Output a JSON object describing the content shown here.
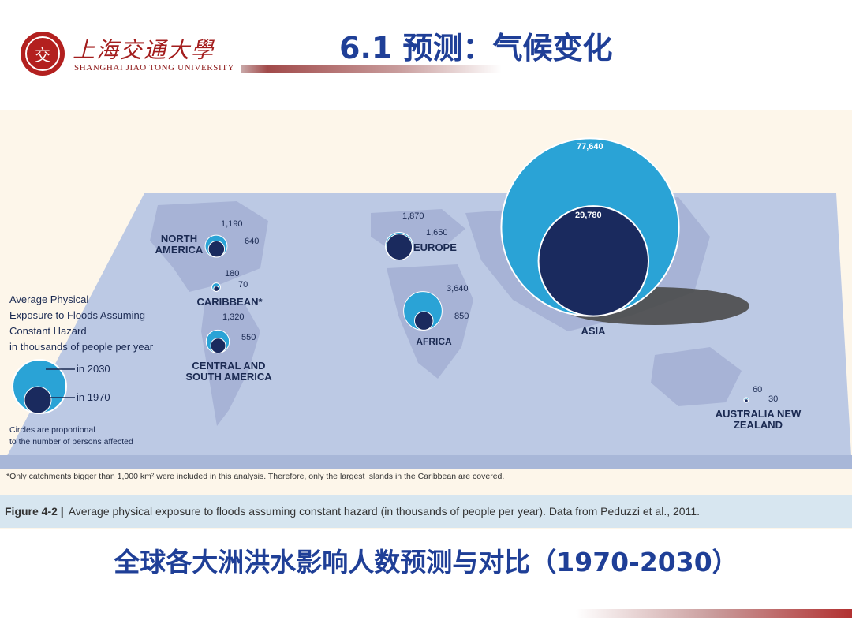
{
  "header": {
    "logo_cn": "上海交通大學",
    "logo_en": "SHANGHAI JIAO TONG UNIVERSITY",
    "title": "6.1 预测：气候变化"
  },
  "figure": {
    "legend": {
      "heading_lines": [
        "Average Physical",
        "Exposure to Floods Assuming",
        "Constant Hazard",
        "in thousands of people per year"
      ],
      "label_2030": "in 2030",
      "label_1970": "in 1970",
      "note_lines": [
        "Circles are proportional",
        "to the number of persons affected"
      ]
    },
    "footnote": "*Only catchments bigger than 1,000 km² were included in this analysis. Therefore, only the largest islands in the Caribbean are covered.",
    "caption_label": "Figure 4-2 |",
    "caption_text": "Average physical exposure to floods assuming constant hazard (in thousands of people per year). Data from Peduzzi et al., 2011."
  },
  "chart_data": {
    "type": "bubble-map",
    "title": "",
    "unit": "thousands of people per year",
    "series": [
      {
        "name": "in 2030"
      },
      {
        "name": "in 1970"
      }
    ],
    "regions": [
      {
        "name": "NORTH AMERICA",
        "v2030": 1190,
        "v1970": 640
      },
      {
        "name": "CARIBBEAN*",
        "v2030": 180,
        "v1970": 70
      },
      {
        "name": "CENTRAL AND SOUTH AMERICA",
        "v2030": 1320,
        "v1970": 550
      },
      {
        "name": "EUROPE",
        "v2030": 1870,
        "v1970": 1650
      },
      {
        "name": "AFRICA",
        "v2030": 3640,
        "v1970": 850
      },
      {
        "name": "ASIA",
        "v2030": 77640,
        "v1970": 29780
      },
      {
        "name": "AUSTRALIA NEW ZEALAND",
        "v2030": 60,
        "v1970": 30
      }
    ],
    "labels": {
      "north_america": "1,190",
      "north_america_1970": "640",
      "caribbean": "180",
      "caribbean_1970": "70",
      "central_south": "1,320",
      "central_south_1970": "550",
      "europe": "1,870",
      "europe_1970": "1,650",
      "africa": "3,640",
      "africa_1970": "850",
      "asia": "77,640",
      "asia_1970": "29,780",
      "aus": "60",
      "aus_1970": "30"
    },
    "region_labels": {
      "north_america": "NORTH AMERICA",
      "caribbean": "CARIBBEAN*",
      "central_south": "CENTRAL AND SOUTH AMERICA",
      "europe": "EUROPE",
      "africa": "AFRICA",
      "asia": "ASIA",
      "aus": "AUSTRALIA NEW ZEALAND"
    },
    "colors": {
      "c2030": "#2aa3d6",
      "c1970": "#1a2a5e"
    }
  },
  "subtitle": "全球各大洲洪水影响人数预测与对比（1970-2030）"
}
